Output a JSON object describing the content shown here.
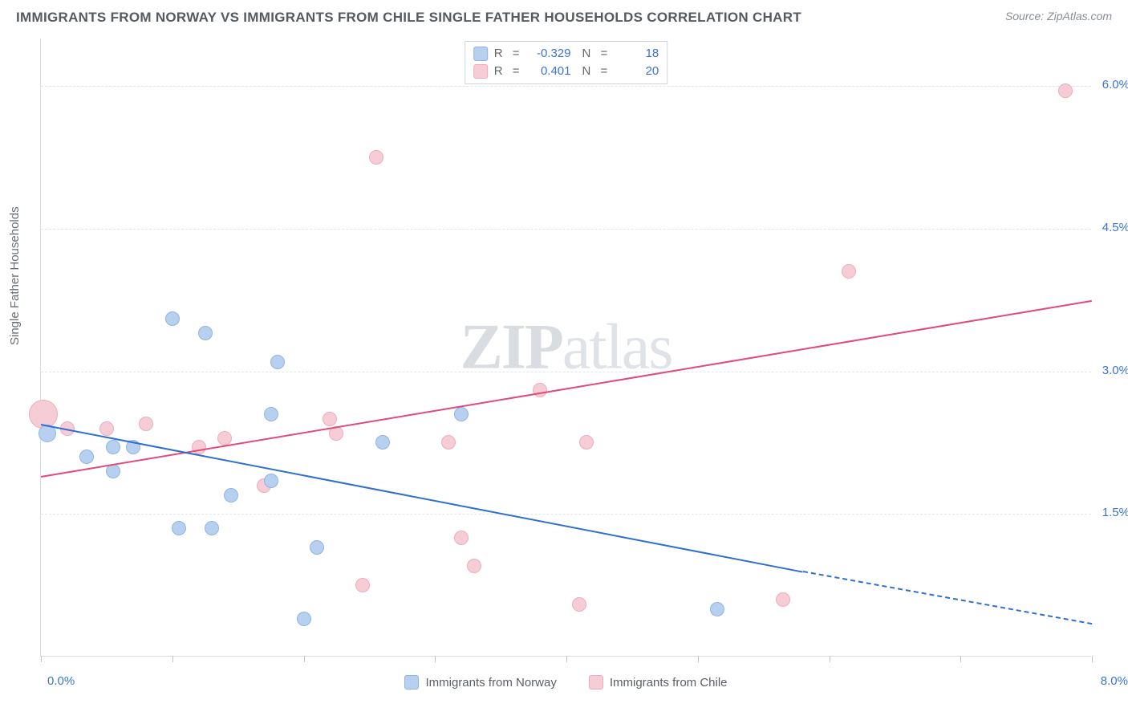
{
  "title": "IMMIGRANTS FROM NORWAY VS IMMIGRANTS FROM CHILE SINGLE FATHER HOUSEHOLDS CORRELATION CHART",
  "source": "Source: ZipAtlas.com",
  "watermark_a": "ZIP",
  "watermark_b": "atlas",
  "y_axis_label": "Single Father Households",
  "x_axis": {
    "min": 0,
    "max": 8,
    "ticks": [
      0,
      1,
      2,
      3,
      4,
      5,
      6,
      7,
      8
    ],
    "label_min": "0.0%",
    "label_max": "8.0%"
  },
  "y_axis": {
    "min": 0,
    "max": 6.5,
    "grid": [
      1.5,
      3.0,
      4.5,
      6.0
    ],
    "labels": [
      "1.5%",
      "3.0%",
      "4.5%",
      "6.0%"
    ]
  },
  "colors": {
    "norway_fill": "#b8d0ef",
    "norway_stroke": "#8fb4e4",
    "norway_line": "#2f6fd0",
    "chile_fill": "#f6cdd7",
    "chile_stroke": "#efabbc",
    "chile_line": "#e24a7a",
    "tick_text": "#3a73d6",
    "grid": "#e2e5ea"
  },
  "legend_top": [
    {
      "swatch": "norway",
      "R_label": "R",
      "R": "-0.329",
      "N_label": "N",
      "N": "18"
    },
    {
      "swatch": "chile",
      "R_label": "R",
      "R": "0.401",
      "N_label": "N",
      "N": "20"
    }
  ],
  "legend_bottom": [
    {
      "swatch": "norway",
      "label": "Immigrants from Norway"
    },
    {
      "swatch": "chile",
      "label": "Immigrants from Chile"
    }
  ],
  "series": {
    "norway": {
      "points": [
        {
          "x": 0.05,
          "y": 2.35,
          "r": 11
        },
        {
          "x": 0.35,
          "y": 2.1,
          "r": 9
        },
        {
          "x": 0.55,
          "y": 2.2,
          "r": 9
        },
        {
          "x": 0.55,
          "y": 1.95,
          "r": 9
        },
        {
          "x": 0.7,
          "y": 2.2,
          "r": 9
        },
        {
          "x": 1.0,
          "y": 3.55,
          "r": 9
        },
        {
          "x": 1.05,
          "y": 1.35,
          "r": 9
        },
        {
          "x": 1.25,
          "y": 3.4,
          "r": 9
        },
        {
          "x": 1.3,
          "y": 1.35,
          "r": 9
        },
        {
          "x": 1.45,
          "y": 1.7,
          "r": 9
        },
        {
          "x": 1.75,
          "y": 2.55,
          "r": 9
        },
        {
          "x": 1.75,
          "y": 1.85,
          "r": 9
        },
        {
          "x": 1.8,
          "y": 3.1,
          "r": 9
        },
        {
          "x": 2.0,
          "y": 0.4,
          "r": 9
        },
        {
          "x": 2.1,
          "y": 1.15,
          "r": 9
        },
        {
          "x": 2.6,
          "y": 2.25,
          "r": 9
        },
        {
          "x": 3.2,
          "y": 2.55,
          "r": 9
        },
        {
          "x": 5.15,
          "y": 0.5,
          "r": 9
        }
      ],
      "trend": {
        "x1": 0.0,
        "y1": 2.45,
        "x2": 5.8,
        "y2": 0.9,
        "dash_from_x": 5.8,
        "dash_to_x": 8.0,
        "dash_y2": 0.35
      }
    },
    "chile": {
      "points": [
        {
          "x": 0.02,
          "y": 2.55,
          "r": 18
        },
        {
          "x": 0.2,
          "y": 2.4,
          "r": 9
        },
        {
          "x": 0.5,
          "y": 2.4,
          "r": 9
        },
        {
          "x": 0.8,
          "y": 2.45,
          "r": 9
        },
        {
          "x": 1.2,
          "y": 2.2,
          "r": 9
        },
        {
          "x": 1.4,
          "y": 2.3,
          "r": 9
        },
        {
          "x": 1.7,
          "y": 1.8,
          "r": 9
        },
        {
          "x": 2.2,
          "y": 2.5,
          "r": 9
        },
        {
          "x": 2.25,
          "y": 2.35,
          "r": 9
        },
        {
          "x": 2.45,
          "y": 0.75,
          "r": 9
        },
        {
          "x": 2.55,
          "y": 5.25,
          "r": 9
        },
        {
          "x": 3.1,
          "y": 2.25,
          "r": 9
        },
        {
          "x": 3.2,
          "y": 1.25,
          "r": 9
        },
        {
          "x": 3.3,
          "y": 0.95,
          "r": 9
        },
        {
          "x": 3.8,
          "y": 2.8,
          "r": 9
        },
        {
          "x": 4.15,
          "y": 2.25,
          "r": 9
        },
        {
          "x": 5.65,
          "y": 0.6,
          "r": 9
        },
        {
          "x": 6.15,
          "y": 4.05,
          "r": 9
        },
        {
          "x": 7.8,
          "y": 5.95,
          "r": 9
        },
        {
          "x": 4.1,
          "y": 0.55,
          "r": 9
        }
      ],
      "trend": {
        "x1": 0.0,
        "y1": 1.9,
        "x2": 8.0,
        "y2": 3.75
      }
    }
  }
}
